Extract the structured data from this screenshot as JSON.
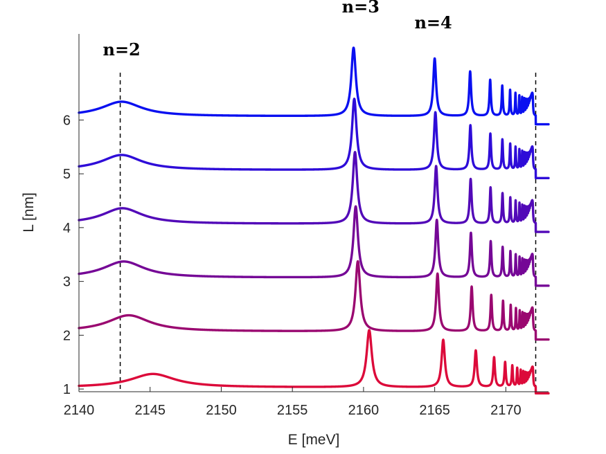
{
  "chart_data": {
    "type": "line",
    "title": "",
    "xlabel": "E [meV]",
    "ylabel": "L [nm]",
    "xlim": [
      2140,
      2173
    ],
    "ylim": [
      0.95,
      7.6
    ],
    "xticks": [
      2140,
      2145,
      2150,
      2155,
      2160,
      2165,
      2170
    ],
    "yticks": [
      1,
      2,
      3,
      4,
      5,
      6
    ],
    "grid": false,
    "legend": "none",
    "reference_lines": [
      2142.9,
      2172.1
    ],
    "annotations": [
      {
        "text": "n=2",
        "x": 2143.0,
        "y": 7.2
      },
      {
        "text": "n=3",
        "x": 2159.8,
        "y": 8.0
      },
      {
        "text": "n=4",
        "x": 2164.9,
        "y": 7.7
      }
    ],
    "edge": 2172.1,
    "series": [
      {
        "name": "L = 6 nm",
        "L": 6,
        "offset": 6,
        "baseline": 6.07,
        "color": "#0a10f0",
        "peaks": [
          {
            "x": 2143.0,
            "h": 0.27,
            "w": 1.7
          },
          {
            "x": 2159.3,
            "h": 1.27,
            "w": 0.19
          },
          {
            "x": 2165.0,
            "h": 1.07,
            "w": 0.12
          }
        ]
      },
      {
        "name": "L = 5 nm",
        "L": 5,
        "offset": 5,
        "baseline": 5.07,
        "color": "#2e0cd8",
        "peaks": [
          {
            "x": 2143.0,
            "h": 0.28,
            "w": 1.7
          },
          {
            "x": 2159.35,
            "h": 1.32,
            "w": 0.19
          },
          {
            "x": 2165.05,
            "h": 1.07,
            "w": 0.12
          }
        ]
      },
      {
        "name": "L = 4 nm",
        "L": 4,
        "offset": 4,
        "baseline": 4.07,
        "color": "#5209b8",
        "peaks": [
          {
            "x": 2143.05,
            "h": 0.29,
            "w": 1.7
          },
          {
            "x": 2159.4,
            "h": 1.33,
            "w": 0.19
          },
          {
            "x": 2165.1,
            "h": 1.07,
            "w": 0.12
          }
        ]
      },
      {
        "name": "L = 3 nm",
        "L": 3,
        "offset": 3,
        "baseline": 3.07,
        "color": "#750796",
        "peaks": [
          {
            "x": 2143.15,
            "h": 0.3,
            "w": 1.75
          },
          {
            "x": 2159.45,
            "h": 1.32,
            "w": 0.19
          },
          {
            "x": 2165.15,
            "h": 1.07,
            "w": 0.12
          }
        ]
      },
      {
        "name": "L = 2 nm",
        "L": 2,
        "offset": 2,
        "baseline": 2.07,
        "color": "#9a0870",
        "peaks": [
          {
            "x": 2143.5,
            "h": 0.3,
            "w": 1.8
          },
          {
            "x": 2159.6,
            "h": 1.3,
            "w": 0.2
          },
          {
            "x": 2165.2,
            "h": 1.07,
            "w": 0.12
          }
        ]
      },
      {
        "name": "L = 1 nm",
        "L": 1,
        "offset": 1,
        "baseline": 1.03,
        "color": "#dc0a3a",
        "peaks": [
          {
            "x": 2145.2,
            "h": 0.25,
            "w": 1.9
          },
          {
            "x": 2160.4,
            "h": 1.06,
            "w": 0.22
          },
          {
            "x": 2165.6,
            "h": 0.88,
            "w": 0.14
          }
        ]
      }
    ]
  }
}
